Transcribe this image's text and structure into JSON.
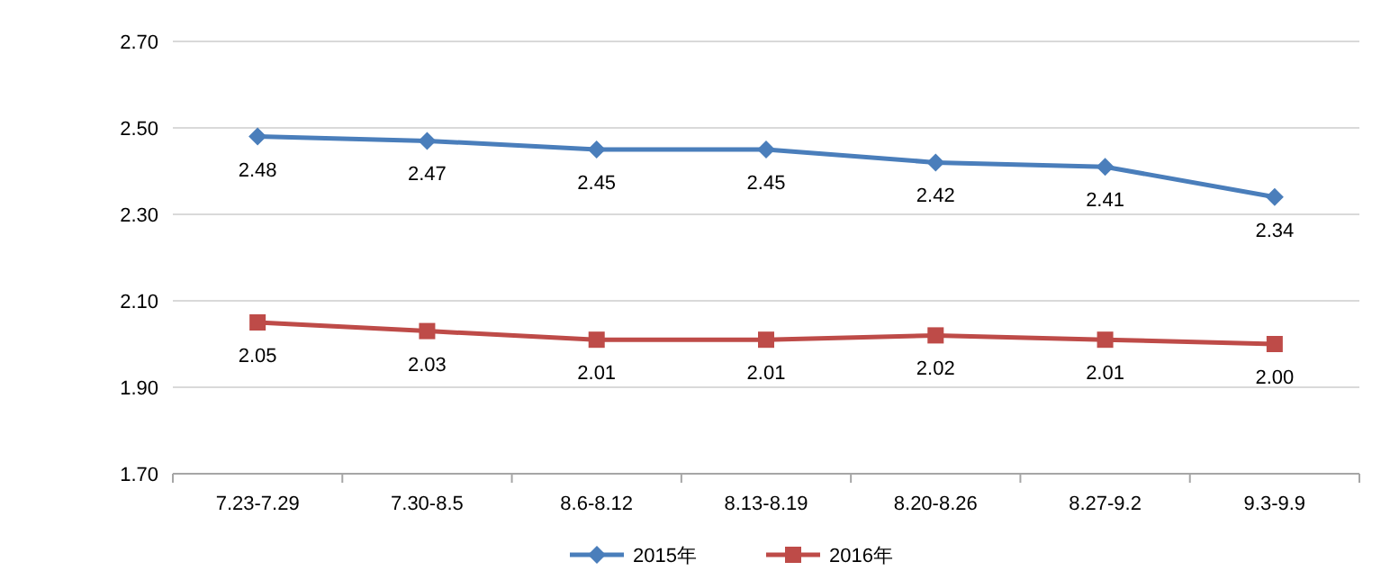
{
  "chart_data": {
    "type": "line",
    "categories": [
      "7.23-7.29",
      "7.30-8.5",
      "8.6-8.12",
      "8.13-8.19",
      "8.20-8.26",
      "8.27-9.2",
      "9.3-9.9"
    ],
    "series": [
      {
        "name": "2015年",
        "color": "#4a7ebb",
        "marker": "diamond",
        "values": [
          2.48,
          2.47,
          2.45,
          2.45,
          2.42,
          2.41,
          2.34
        ],
        "value_labels": [
          "2.48",
          "2.47",
          "2.45",
          "2.45",
          "2.42",
          "2.41",
          "2.34"
        ]
      },
      {
        "name": "2016年",
        "color": "#be4b48",
        "marker": "square",
        "values": [
          2.05,
          2.03,
          2.01,
          2.01,
          2.02,
          2.01,
          2.0
        ],
        "value_labels": [
          "2.05",
          "2.03",
          "2.01",
          "2.01",
          "2.02",
          "2.01",
          "2.00"
        ]
      }
    ],
    "ylim": [
      1.7,
      2.7
    ],
    "yticks": [
      {
        "value": 1.7,
        "label": "1.70"
      },
      {
        "value": 1.9,
        "label": "1.90"
      },
      {
        "value": 2.1,
        "label": "2.10"
      },
      {
        "value": 2.3,
        "label": "2.30"
      },
      {
        "value": 2.5,
        "label": "2.50"
      },
      {
        "value": 2.7,
        "label": "2.70"
      }
    ],
    "grid": "y",
    "legend": "bottom"
  }
}
